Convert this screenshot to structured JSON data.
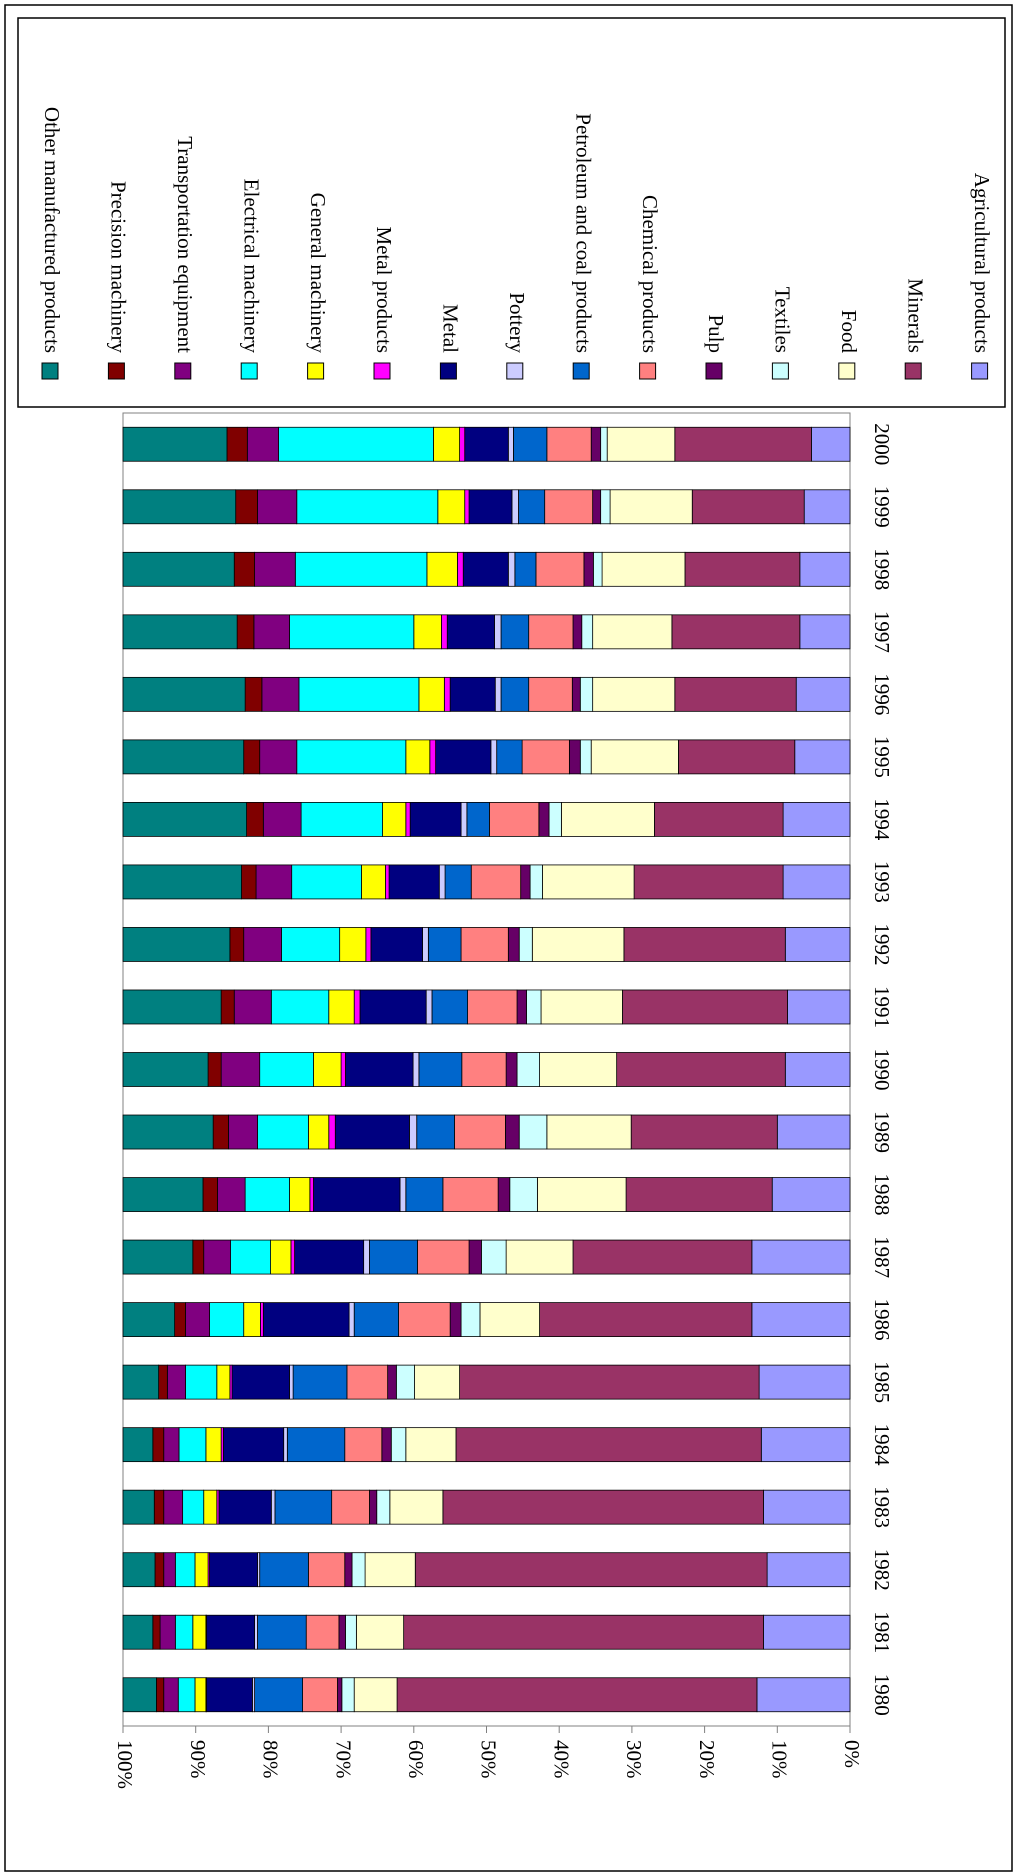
{
  "chart_data": {
    "type": "stacked_bar",
    "categories": [
      "1980",
      "1981",
      "1982",
      "1983",
      "1984",
      "1985",
      "1986",
      "1987",
      "1988",
      "1989",
      "1990",
      "1991",
      "1992",
      "1993",
      "1994",
      "1995",
      "1996",
      "1997",
      "1998",
      "1999",
      "2000"
    ],
    "ylim": [
      0,
      100
    ],
    "yticks": [
      {
        "value": 0,
        "label": "0%"
      },
      {
        "value": 10,
        "label": "10%"
      },
      {
        "value": 20,
        "label": "20%"
      },
      {
        "value": 30,
        "label": "30%"
      },
      {
        "value": 40,
        "label": "40%"
      },
      {
        "value": 50,
        "label": "50%"
      },
      {
        "value": 60,
        "label": "60%"
      },
      {
        "value": 70,
        "label": "70%"
      },
      {
        "value": 80,
        "label": "80%"
      },
      {
        "value": 90,
        "label": "90%"
      },
      {
        "value": 100,
        "label": "100%"
      }
    ],
    "series": [
      {
        "name": "Agricultural products",
        "color": "#9999ff",
        "values": [
          12.8,
          11.9,
          11.4,
          11.9,
          12.2,
          12.5,
          13.5,
          13.5,
          10.7,
          10.0,
          8.9,
          8.6,
          8.9,
          9.2,
          9.2,
          7.6,
          7.4,
          6.9,
          6.9,
          6.3,
          5.3
        ]
      },
      {
        "name": "Minerals",
        "color": "#993366",
        "values": [
          49.5,
          49.5,
          48.4,
          44.1,
          42.0,
          41.2,
          29.2,
          24.6,
          20.1,
          20.1,
          23.2,
          22.7,
          22.2,
          20.5,
          17.7,
          16.0,
          16.7,
          17.6,
          15.8,
          15.4,
          18.8
        ]
      },
      {
        "name": "Food",
        "color": "#ffffcc",
        "values": [
          5.9,
          6.5,
          6.9,
          7.3,
          6.9,
          6.2,
          8.2,
          9.2,
          12.2,
          11.6,
          10.6,
          11.2,
          12.6,
          12.6,
          12.8,
          12.0,
          11.3,
          10.9,
          11.4,
          11.3,
          9.3
        ]
      },
      {
        "name": "Textiles",
        "color": "#ccffff",
        "values": [
          1.7,
          1.5,
          1.8,
          1.8,
          2.0,
          2.5,
          2.6,
          3.4,
          3.8,
          3.8,
          3.1,
          2.0,
          1.8,
          1.7,
          1.7,
          1.5,
          1.7,
          1.5,
          1.2,
          1.3,
          0.9
        ]
      },
      {
        "name": "Pulp",
        "color": "#660066",
        "values": [
          0.6,
          0.9,
          1.0,
          1.0,
          1.3,
          1.2,
          1.5,
          1.7,
          1.6,
          1.9,
          1.5,
          1.3,
          1.5,
          1.3,
          1.4,
          1.5,
          1.1,
          1.2,
          1.3,
          1.1,
          1.3
        ]
      },
      {
        "name": "Chemical products",
        "color": "#ff8080",
        "values": [
          4.8,
          4.5,
          5.0,
          5.2,
          5.1,
          5.6,
          7.1,
          7.1,
          7.6,
          7.0,
          6.1,
          6.8,
          6.5,
          6.8,
          6.8,
          6.5,
          6.0,
          6.1,
          6.6,
          6.6,
          6.1
        ]
      },
      {
        "name": "Petroleum and coal products",
        "color": "#0066cc",
        "values": [
          6.6,
          6.7,
          6.7,
          7.8,
          7.9,
          7.4,
          6.1,
          6.6,
          5.1,
          5.2,
          5.9,
          4.9,
          4.5,
          3.6,
          3.1,
          3.5,
          3.8,
          3.8,
          2.9,
          3.6,
          4.6
        ]
      },
      {
        "name": "Pottery",
        "color": "#ccccff",
        "values": [
          0.3,
          0.4,
          0.3,
          0.5,
          0.5,
          0.5,
          0.7,
          0.8,
          0.8,
          1.0,
          0.8,
          0.8,
          0.8,
          0.8,
          0.8,
          0.8,
          0.8,
          0.9,
          0.9,
          0.9,
          0.7
        ]
      },
      {
        "name": "Metal",
        "color": "#000080",
        "values": [
          6.3,
          6.6,
          6.6,
          7.2,
          8.3,
          7.9,
          11.8,
          9.5,
          11.9,
          10.2,
          9.3,
          9.1,
          7.1,
          6.9,
          7.0,
          7.6,
          6.2,
          6.5,
          6.2,
          5.9,
          6.0
        ]
      },
      {
        "name": "Metal products",
        "color": "#ff00ff",
        "values": [
          0.1,
          0.1,
          0.2,
          0.3,
          0.3,
          0.3,
          0.4,
          0.5,
          0.5,
          0.9,
          0.6,
          0.8,
          0.7,
          0.5,
          0.6,
          0.8,
          0.8,
          0.8,
          0.8,
          0.6,
          0.7
        ]
      },
      {
        "name": "General machinery",
        "color": "#ffff00",
        "values": [
          1.5,
          1.8,
          1.8,
          1.8,
          2.1,
          1.8,
          2.3,
          2.8,
          2.8,
          2.8,
          3.8,
          3.5,
          3.6,
          3.3,
          3.2,
          3.3,
          3.5,
          3.8,
          4.2,
          3.7,
          3.6
        ]
      },
      {
        "name": "Electrical machinery",
        "color": "#00ffff",
        "values": [
          2.3,
          2.4,
          2.7,
          2.9,
          3.7,
          4.3,
          4.7,
          5.5,
          6.1,
          7.0,
          7.4,
          7.9,
          8.0,
          9.6,
          11.2,
          15.0,
          16.5,
          17.1,
          18.1,
          19.4,
          21.3
        ]
      },
      {
        "name": "Transportation equipment",
        "color": "#800080",
        "values": [
          2.0,
          2.1,
          1.6,
          2.6,
          2.1,
          2.5,
          3.3,
          3.7,
          3.8,
          4.0,
          5.3,
          5.1,
          5.2,
          4.9,
          5.2,
          5.1,
          5.1,
          4.9,
          5.6,
          5.4,
          4.3
        ]
      },
      {
        "name": "Precision machinery",
        "color": "#800000",
        "values": [
          1.0,
          1.0,
          1.2,
          1.3,
          1.5,
          1.2,
          1.5,
          1.5,
          2.0,
          2.1,
          1.8,
          1.8,
          1.9,
          2.0,
          2.3,
          2.2,
          2.3,
          2.3,
          2.8,
          3.0,
          2.8
        ]
      },
      {
        "name": "Other manufactured products",
        "color": "#008080",
        "values": [
          4.6,
          4.1,
          4.4,
          4.3,
          4.1,
          4.9,
          7.1,
          9.6,
          11.0,
          12.4,
          11.7,
          13.5,
          14.7,
          16.3,
          17.0,
          16.6,
          16.8,
          15.7,
          15.3,
          15.5,
          14.3
        ]
      }
    ]
  }
}
